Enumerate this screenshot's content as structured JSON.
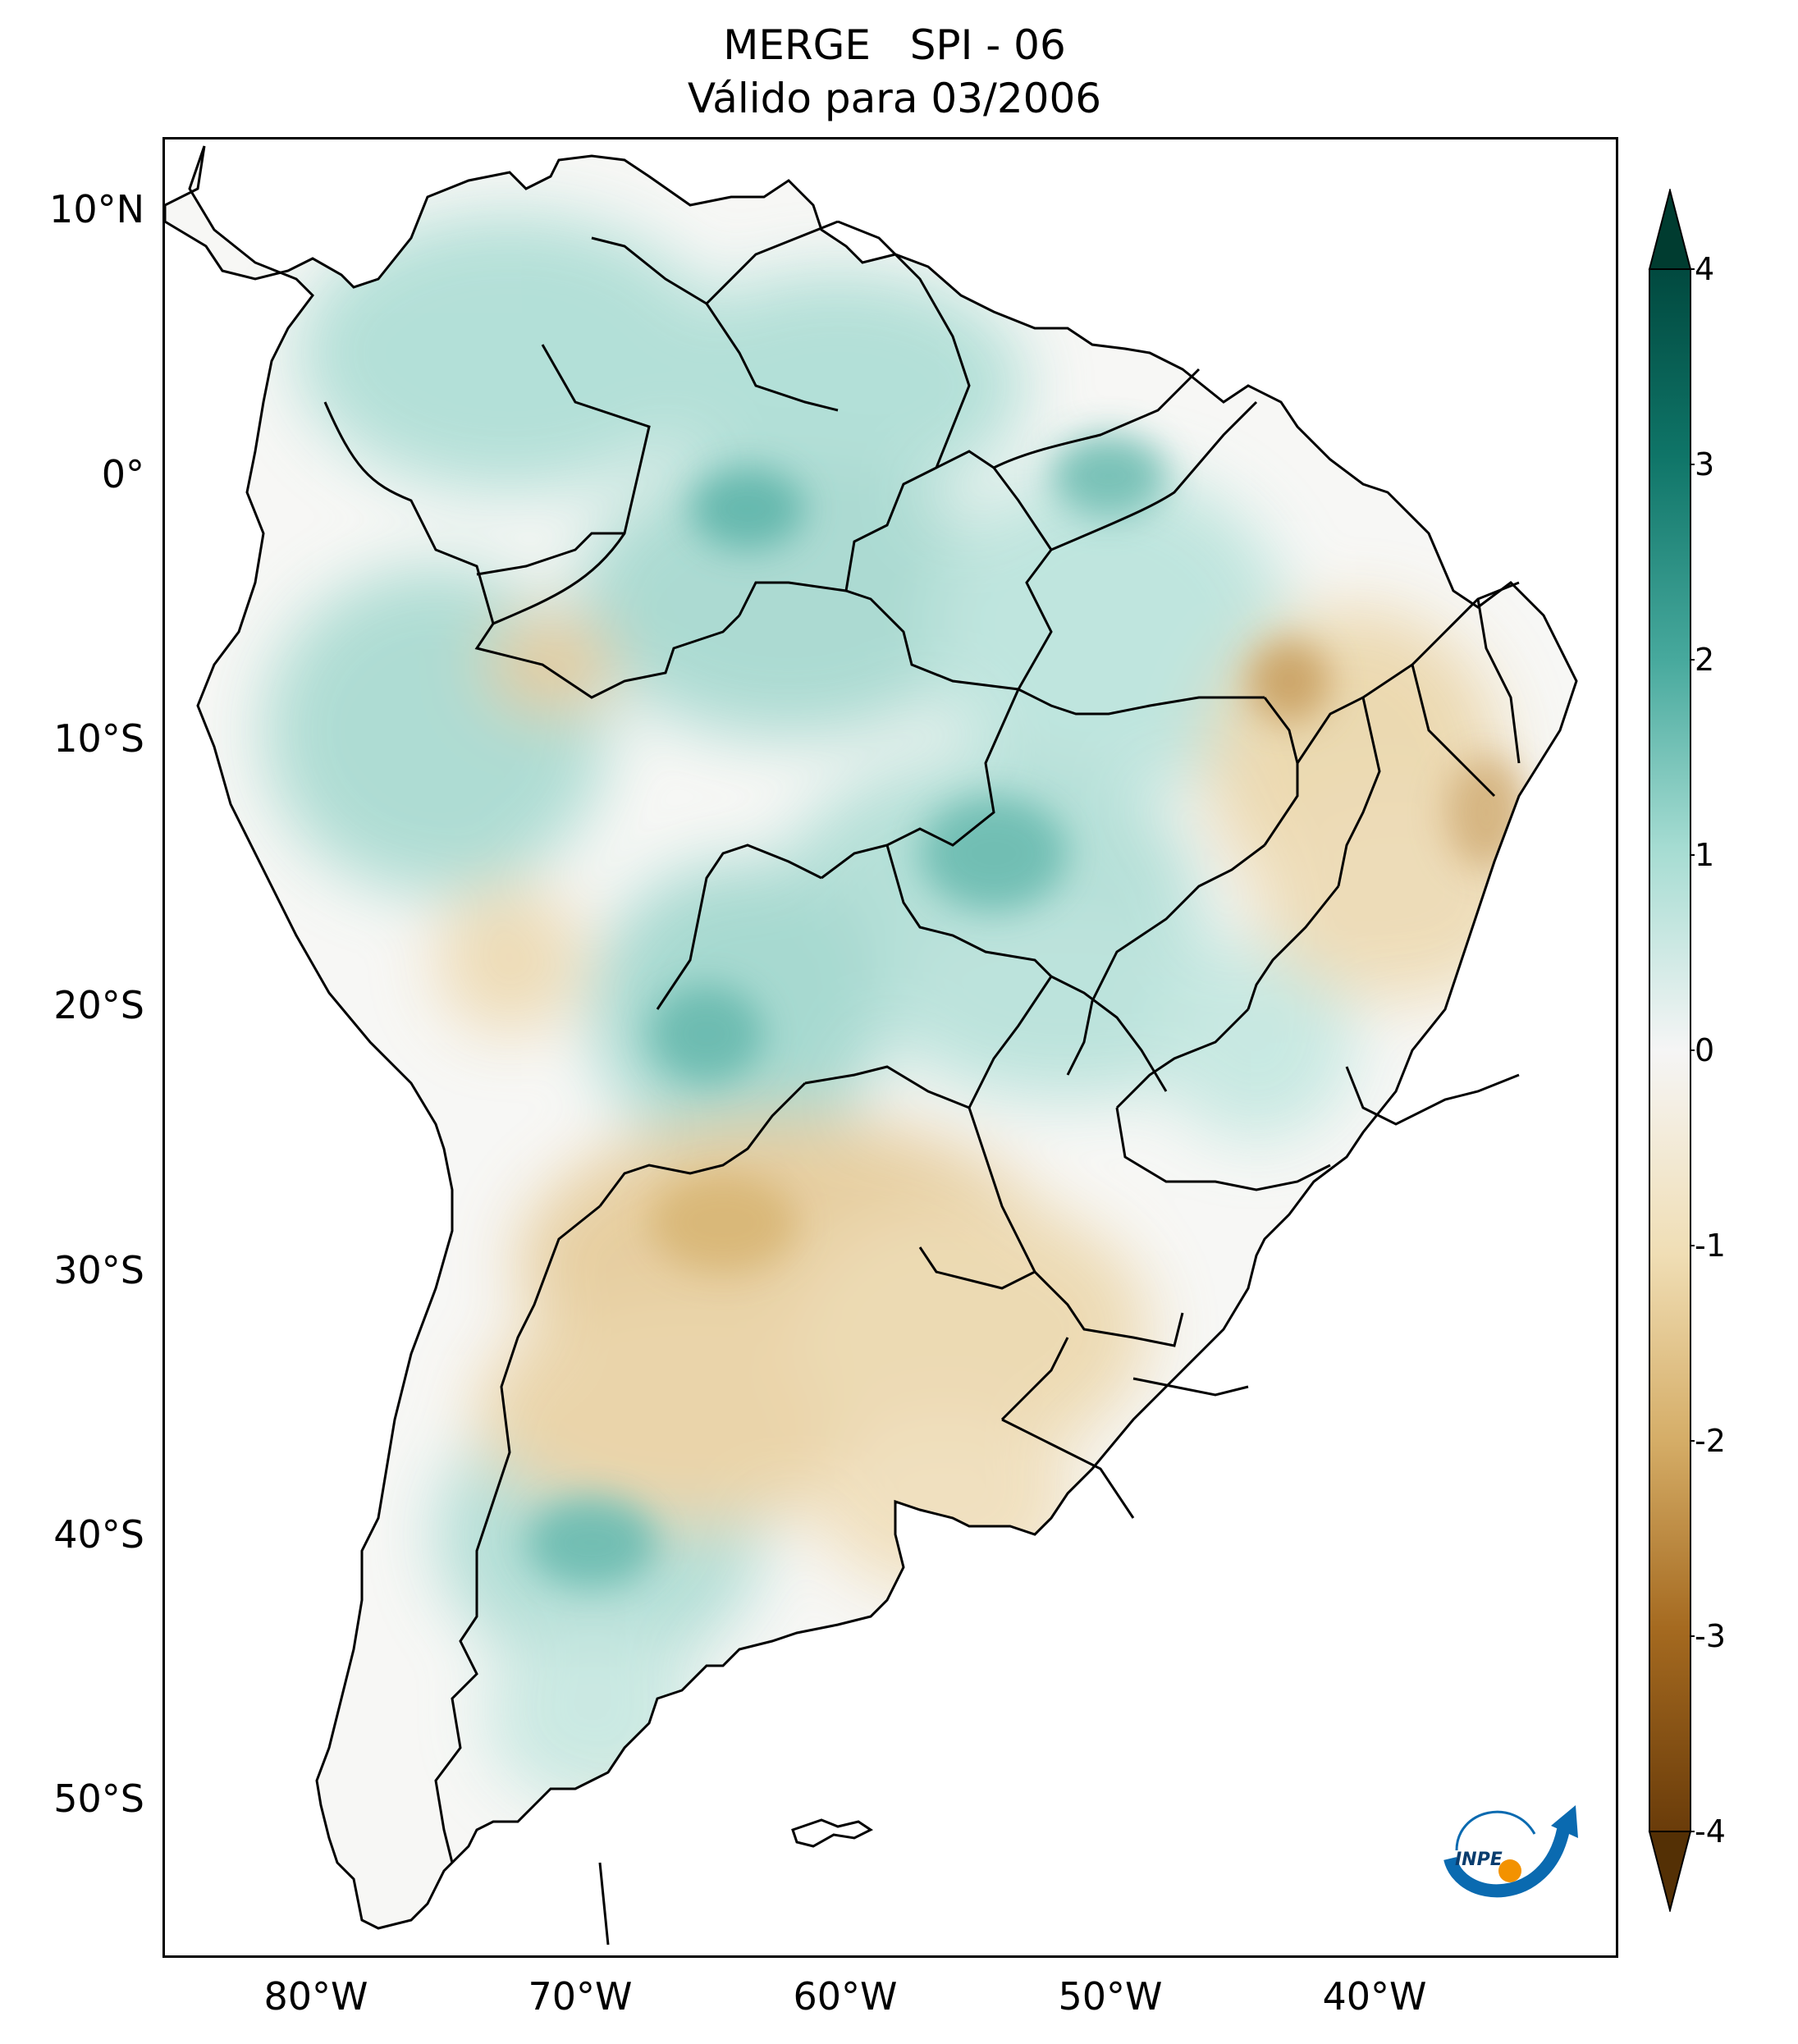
{
  "title": {
    "line1": "MERGE   SPI - 06",
    "line2": "Válido para 03/2006"
  },
  "axes": {
    "lat_labels": [
      "10°N",
      "0°",
      "10°S",
      "20°S",
      "30°S",
      "40°S",
      "50°S"
    ],
    "lon_labels": [
      "80°W",
      "70°W",
      "60°W",
      "50°W",
      "40°W"
    ],
    "lon_range": [
      -85,
      -30
    ],
    "lat_range": [
      -56,
      13
    ]
  },
  "colorbar": {
    "ticks": [
      "4",
      "3",
      "2",
      "1",
      "0",
      "-1",
      "-2",
      "-3",
      "-4"
    ],
    "range": [
      -4,
      4
    ],
    "extend": "both",
    "colors": {
      "max": "#003c30",
      "high": "#35978f",
      "mid_high": "#c7eae5",
      "zero": "#f5f5f5",
      "mid_low": "#f6e8c3",
      "low": "#bf812d",
      "min": "#543005"
    }
  },
  "map": {
    "description_colors": {
      "wet": "#5ab4ac",
      "dry": "#d8b365",
      "border": "#000000"
    }
  },
  "logo": {
    "text": "INPE",
    "colors": {
      "arc": "#0a6ab0",
      "dot": "#f39200"
    }
  }
}
